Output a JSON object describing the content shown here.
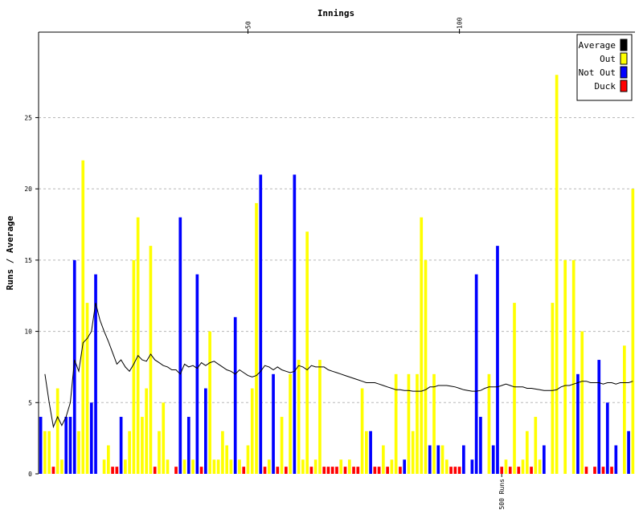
{
  "chart_data": {
    "type": "bar",
    "title": "Innings",
    "xlabel": "Innings",
    "ylabel": "Runs / Average",
    "xlim": [
      0.5,
      141.5
    ],
    "ylim": [
      0,
      31
    ],
    "y_ticks": [
      0,
      5,
      10,
      15,
      20,
      25
    ],
    "y_tick_labels": [
      "0",
      "5",
      "10",
      "15",
      "20",
      "25"
    ],
    "top_ticks": [
      {
        "innings": 50,
        "label": "50"
      },
      {
        "innings": 100,
        "label": "100"
      }
    ],
    "milestones": [
      {
        "innings": 110,
        "label": "500 Runs"
      }
    ],
    "grid": true,
    "legend_position": "top-right",
    "legend": [
      {
        "key": "average",
        "label": "Average",
        "color": "#000000"
      },
      {
        "key": "out",
        "label": "Out",
        "color": "#ffff00"
      },
      {
        "key": "notout",
        "label": "Not Out",
        "color": "#0000ff"
      },
      {
        "key": "duck",
        "label": "Duck",
        "color": "#ff0000"
      }
    ],
    "bars": [
      {
        "innings": 1,
        "runs": 4,
        "type": "notout"
      },
      {
        "innings": 2,
        "runs": 3,
        "type": "out"
      },
      {
        "innings": 3,
        "runs": 3,
        "type": "out"
      },
      {
        "innings": 4,
        "runs": 0,
        "type": "duck"
      },
      {
        "innings": 5,
        "runs": 6,
        "type": "out"
      },
      {
        "innings": 6,
        "runs": 1,
        "type": "out"
      },
      {
        "innings": 7,
        "runs": 4,
        "type": "notout"
      },
      {
        "innings": 8,
        "runs": 4,
        "type": "notout"
      },
      {
        "innings": 9,
        "runs": 15,
        "type": "notout"
      },
      {
        "innings": 10,
        "runs": 3,
        "type": "out"
      },
      {
        "innings": 11,
        "runs": 22,
        "type": "out"
      },
      {
        "innings": 12,
        "runs": 12,
        "type": "out"
      },
      {
        "innings": 13,
        "runs": 5,
        "type": "notout"
      },
      {
        "innings": 14,
        "runs": 14,
        "type": "notout"
      },
      {
        "innings": 15,
        "runs": 0,
        "type": "out"
      },
      {
        "innings": 16,
        "runs": 1,
        "type": "out"
      },
      {
        "innings": 17,
        "runs": 2,
        "type": "out"
      },
      {
        "innings": 18,
        "runs": 0,
        "type": "duck"
      },
      {
        "innings": 19,
        "runs": 0,
        "type": "duck"
      },
      {
        "innings": 20,
        "runs": 4,
        "type": "notout"
      },
      {
        "innings": 21,
        "runs": 1,
        "type": "out"
      },
      {
        "innings": 22,
        "runs": 3,
        "type": "out"
      },
      {
        "innings": 23,
        "runs": 15,
        "type": "out"
      },
      {
        "innings": 24,
        "runs": 18,
        "type": "out"
      },
      {
        "innings": 25,
        "runs": 4,
        "type": "out"
      },
      {
        "innings": 26,
        "runs": 6,
        "type": "out"
      },
      {
        "innings": 27,
        "runs": 16,
        "type": "out"
      },
      {
        "innings": 28,
        "runs": 0,
        "type": "duck"
      },
      {
        "innings": 29,
        "runs": 3,
        "type": "out"
      },
      {
        "innings": 30,
        "runs": 5,
        "type": "out"
      },
      {
        "innings": 31,
        "runs": 1,
        "type": "out"
      },
      {
        "innings": 32,
        "runs": 0,
        "type": "out"
      },
      {
        "innings": 33,
        "runs": 0,
        "type": "duck"
      },
      {
        "innings": 34,
        "runs": 18,
        "type": "notout"
      },
      {
        "innings": 35,
        "runs": 1,
        "type": "out"
      },
      {
        "innings": 36,
        "runs": 4,
        "type": "notout"
      },
      {
        "innings": 37,
        "runs": 1,
        "type": "out"
      },
      {
        "innings": 38,
        "runs": 14,
        "type": "notout"
      },
      {
        "innings": 39,
        "runs": 0,
        "type": "duck"
      },
      {
        "innings": 40,
        "runs": 6,
        "type": "notout"
      },
      {
        "innings": 41,
        "runs": 10,
        "type": "out"
      },
      {
        "innings": 42,
        "runs": 1,
        "type": "out"
      },
      {
        "innings": 43,
        "runs": 1,
        "type": "out"
      },
      {
        "innings": 44,
        "runs": 3,
        "type": "out"
      },
      {
        "innings": 45,
        "runs": 2,
        "type": "out"
      },
      {
        "innings": 46,
        "runs": 1,
        "type": "out"
      },
      {
        "innings": 47,
        "runs": 11,
        "type": "notout"
      },
      {
        "innings": 48,
        "runs": 1,
        "type": "out"
      },
      {
        "innings": 49,
        "runs": 0,
        "type": "duck"
      },
      {
        "innings": 50,
        "runs": 2,
        "type": "out"
      },
      {
        "innings": 51,
        "runs": 6,
        "type": "out"
      },
      {
        "innings": 52,
        "runs": 19,
        "type": "out"
      },
      {
        "innings": 53,
        "runs": 21,
        "type": "notout"
      },
      {
        "innings": 54,
        "runs": 0,
        "type": "duck"
      },
      {
        "innings": 55,
        "runs": 1,
        "type": "out"
      },
      {
        "innings": 56,
        "runs": 7,
        "type": "notout"
      },
      {
        "innings": 57,
        "runs": 0,
        "type": "duck"
      },
      {
        "innings": 58,
        "runs": 4,
        "type": "out"
      },
      {
        "innings": 59,
        "runs": 0,
        "type": "duck"
      },
      {
        "innings": 60,
        "runs": 7,
        "type": "out"
      },
      {
        "innings": 61,
        "runs": 21,
        "type": "notout"
      },
      {
        "innings": 62,
        "runs": 8,
        "type": "out"
      },
      {
        "innings": 63,
        "runs": 1,
        "type": "out"
      },
      {
        "innings": 64,
        "runs": 17,
        "type": "out"
      },
      {
        "innings": 65,
        "runs": 0,
        "type": "duck"
      },
      {
        "innings": 66,
        "runs": 1,
        "type": "out"
      },
      {
        "innings": 67,
        "runs": 8,
        "type": "out"
      },
      {
        "innings": 68,
        "runs": 0,
        "type": "duck"
      },
      {
        "innings": 69,
        "runs": 0,
        "type": "duck"
      },
      {
        "innings": 70,
        "runs": 0,
        "type": "duck"
      },
      {
        "innings": 71,
        "runs": 0,
        "type": "duck"
      },
      {
        "innings": 72,
        "runs": 1,
        "type": "out"
      },
      {
        "innings": 73,
        "runs": 0,
        "type": "duck"
      },
      {
        "innings": 74,
        "runs": 1,
        "type": "out"
      },
      {
        "innings": 75,
        "runs": 0,
        "type": "duck"
      },
      {
        "innings": 76,
        "runs": 0,
        "type": "duck"
      },
      {
        "innings": 77,
        "runs": 6,
        "type": "out"
      },
      {
        "innings": 78,
        "runs": 3,
        "type": "out"
      },
      {
        "innings": 79,
        "runs": 3,
        "type": "notout"
      },
      {
        "innings": 80,
        "runs": 0,
        "type": "duck"
      },
      {
        "innings": 81,
        "runs": 0,
        "type": "duck"
      },
      {
        "innings": 82,
        "runs": 2,
        "type": "out"
      },
      {
        "innings": 83,
        "runs": 0,
        "type": "duck"
      },
      {
        "innings": 84,
        "runs": 1,
        "type": "out"
      },
      {
        "innings": 85,
        "runs": 7,
        "type": "out"
      },
      {
        "innings": 86,
        "runs": 0,
        "type": "duck"
      },
      {
        "innings": 87,
        "runs": 1,
        "type": "notout"
      },
      {
        "innings": 88,
        "runs": 7,
        "type": "out"
      },
      {
        "innings": 89,
        "runs": 3,
        "type": "out"
      },
      {
        "innings": 90,
        "runs": 7,
        "type": "out"
      },
      {
        "innings": 91,
        "runs": 18,
        "type": "out"
      },
      {
        "innings": 92,
        "runs": 15,
        "type": "out"
      },
      {
        "innings": 93,
        "runs": 2,
        "type": "notout"
      },
      {
        "innings": 94,
        "runs": 7,
        "type": "out"
      },
      {
        "innings": 95,
        "runs": 2,
        "type": "notout"
      },
      {
        "innings": 96,
        "runs": 2,
        "type": "out"
      },
      {
        "innings": 97,
        "runs": 1,
        "type": "out"
      },
      {
        "innings": 98,
        "runs": 0,
        "type": "duck"
      },
      {
        "innings": 99,
        "runs": 0,
        "type": "duck"
      },
      {
        "innings": 100,
        "runs": 0,
        "type": "duck"
      },
      {
        "innings": 101,
        "runs": 2,
        "type": "notout"
      },
      {
        "innings": 102,
        "runs": 0,
        "type": "out"
      },
      {
        "innings": 103,
        "runs": 1,
        "type": "notout"
      },
      {
        "innings": 104,
        "runs": 14,
        "type": "notout"
      },
      {
        "innings": 105,
        "runs": 4,
        "type": "notout"
      },
      {
        "innings": 106,
        "runs": 0,
        "type": "out"
      },
      {
        "innings": 107,
        "runs": 7,
        "type": "out"
      },
      {
        "innings": 108,
        "runs": 2,
        "type": "notout"
      },
      {
        "innings": 109,
        "runs": 16,
        "type": "notout"
      },
      {
        "innings": 110,
        "runs": 0,
        "type": "duck"
      },
      {
        "innings": 111,
        "runs": 1,
        "type": "out"
      },
      {
        "innings": 112,
        "runs": 0,
        "type": "duck"
      },
      {
        "innings": 113,
        "runs": 12,
        "type": "out"
      },
      {
        "innings": 114,
        "runs": 0,
        "type": "duck"
      },
      {
        "innings": 115,
        "runs": 1,
        "type": "out"
      },
      {
        "innings": 116,
        "runs": 3,
        "type": "out"
      },
      {
        "innings": 117,
        "runs": 0,
        "type": "duck"
      },
      {
        "innings": 118,
        "runs": 4,
        "type": "out"
      },
      {
        "innings": 119,
        "runs": 1,
        "type": "out"
      },
      {
        "innings": 120,
        "runs": 2,
        "type": "notout"
      },
      {
        "innings": 121,
        "runs": 0,
        "type": "out"
      },
      {
        "innings": 122,
        "runs": 12,
        "type": "out"
      },
      {
        "innings": 123,
        "runs": 28,
        "type": "out"
      },
      {
        "innings": 124,
        "runs": 0,
        "type": "out"
      },
      {
        "innings": 125,
        "runs": 15,
        "type": "out"
      },
      {
        "innings": 126,
        "runs": 0,
        "type": "out"
      },
      {
        "innings": 127,
        "runs": 15,
        "type": "out"
      },
      {
        "innings": 128,
        "runs": 7,
        "type": "notout"
      },
      {
        "innings": 129,
        "runs": 10,
        "type": "out"
      },
      {
        "innings": 130,
        "runs": 0,
        "type": "duck"
      },
      {
        "innings": 131,
        "runs": 0,
        "type": "out"
      },
      {
        "innings": 132,
        "runs": 0,
        "type": "duck"
      },
      {
        "innings": 133,
        "runs": 8,
        "type": "notout"
      },
      {
        "innings": 134,
        "runs": 0,
        "type": "duck"
      },
      {
        "innings": 135,
        "runs": 5,
        "type": "notout"
      },
      {
        "innings": 136,
        "runs": 0,
        "type": "duck"
      },
      {
        "innings": 137,
        "runs": 2,
        "type": "notout"
      },
      {
        "innings": 138,
        "runs": 0,
        "type": "out"
      },
      {
        "innings": 139,
        "runs": 9,
        "type": "out"
      },
      {
        "innings": 140,
        "runs": 3,
        "type": "notout"
      },
      {
        "innings": 141,
        "runs": 20,
        "type": "out"
      }
    ],
    "average": [
      [
        2,
        7.0
      ],
      [
        3,
        5.0
      ],
      [
        4,
        3.3
      ],
      [
        5,
        4.0
      ],
      [
        6,
        3.4
      ],
      [
        7,
        4.0
      ],
      [
        8,
        5.0
      ],
      [
        9,
        8.0
      ],
      [
        10,
        7.2
      ],
      [
        11,
        9.2
      ],
      [
        12,
        9.5
      ],
      [
        13,
        10.0
      ],
      [
        14,
        12.0
      ],
      [
        15,
        10.8
      ],
      [
        16,
        10.0
      ],
      [
        17,
        9.3
      ],
      [
        18,
        8.5
      ],
      [
        19,
        7.7
      ],
      [
        20,
        8.0
      ],
      [
        21,
        7.5
      ],
      [
        22,
        7.2
      ],
      [
        23,
        7.7
      ],
      [
        24,
        8.3
      ],
      [
        25,
        8.0
      ],
      [
        26,
        7.9
      ],
      [
        27,
        8.4
      ],
      [
        28,
        8.0
      ],
      [
        29,
        7.8
      ],
      [
        30,
        7.6
      ],
      [
        31,
        7.5
      ],
      [
        32,
        7.3
      ],
      [
        33,
        7.3
      ],
      [
        34,
        7.0
      ],
      [
        35,
        7.7
      ],
      [
        36,
        7.5
      ],
      [
        37,
        7.6
      ],
      [
        38,
        7.4
      ],
      [
        39,
        7.8
      ],
      [
        40,
        7.6
      ],
      [
        41,
        7.8
      ],
      [
        42,
        7.9
      ],
      [
        43,
        7.7
      ],
      [
        44,
        7.5
      ],
      [
        45,
        7.3
      ],
      [
        46,
        7.2
      ],
      [
        47,
        7.0
      ],
      [
        48,
        7.3
      ],
      [
        49,
        7.1
      ],
      [
        50,
        6.9
      ],
      [
        51,
        6.8
      ],
      [
        52,
        6.9
      ],
      [
        53,
        7.2
      ],
      [
        54,
        7.6
      ],
      [
        55,
        7.5
      ],
      [
        56,
        7.3
      ],
      [
        57,
        7.5
      ],
      [
        58,
        7.3
      ],
      [
        59,
        7.2
      ],
      [
        60,
        7.1
      ],
      [
        61,
        7.2
      ],
      [
        62,
        7.6
      ],
      [
        63,
        7.5
      ],
      [
        64,
        7.3
      ],
      [
        65,
        7.6
      ],
      [
        66,
        7.5
      ],
      [
        67,
        7.5
      ],
      [
        68,
        7.5
      ],
      [
        69,
        7.3
      ],
      [
        70,
        7.2
      ],
      [
        71,
        7.1
      ],
      [
        72,
        7.0
      ],
      [
        73,
        6.9
      ],
      [
        74,
        6.8
      ],
      [
        75,
        6.7
      ],
      [
        76,
        6.6
      ],
      [
        77,
        6.5
      ],
      [
        78,
        6.4
      ],
      [
        79,
        6.4
      ],
      [
        80,
        6.4
      ],
      [
        81,
        6.3
      ],
      [
        82,
        6.2
      ],
      [
        83,
        6.1
      ],
      [
        84,
        6.0
      ],
      [
        85,
        5.9
      ],
      [
        86,
        5.9
      ],
      [
        87,
        5.85
      ],
      [
        88,
        5.85
      ],
      [
        89,
        5.8
      ],
      [
        90,
        5.8
      ],
      [
        91,
        5.8
      ],
      [
        92,
        5.9
      ],
      [
        93,
        6.1
      ],
      [
        94,
        6.1
      ],
      [
        95,
        6.2
      ],
      [
        96,
        6.2
      ],
      [
        97,
        6.2
      ],
      [
        98,
        6.15
      ],
      [
        99,
        6.1
      ],
      [
        100,
        6.0
      ],
      [
        101,
        5.9
      ],
      [
        102,
        5.85
      ],
      [
        103,
        5.8
      ],
      [
        104,
        5.8
      ],
      [
        105,
        5.85
      ],
      [
        106,
        6.0
      ],
      [
        107,
        6.1
      ],
      [
        108,
        6.1
      ],
      [
        109,
        6.1
      ],
      [
        110,
        6.2
      ],
      [
        111,
        6.3
      ],
      [
        112,
        6.2
      ],
      [
        113,
        6.1
      ],
      [
        114,
        6.1
      ],
      [
        115,
        6.1
      ],
      [
        116,
        6.0
      ],
      [
        117,
        6.0
      ],
      [
        118,
        5.95
      ],
      [
        119,
        5.9
      ],
      [
        120,
        5.85
      ],
      [
        121,
        5.85
      ],
      [
        122,
        5.85
      ],
      [
        123,
        5.9
      ],
      [
        124,
        6.1
      ],
      [
        125,
        6.2
      ],
      [
        126,
        6.2
      ],
      [
        127,
        6.3
      ],
      [
        128,
        6.4
      ],
      [
        129,
        6.5
      ],
      [
        130,
        6.5
      ],
      [
        131,
        6.4
      ],
      [
        132,
        6.4
      ],
      [
        133,
        6.4
      ],
      [
        134,
        6.3
      ],
      [
        135,
        6.4
      ],
      [
        136,
        6.4
      ],
      [
        137,
        6.3
      ],
      [
        138,
        6.4
      ],
      [
        139,
        6.4
      ],
      [
        140,
        6.4
      ],
      [
        141,
        6.5
      ]
    ]
  }
}
